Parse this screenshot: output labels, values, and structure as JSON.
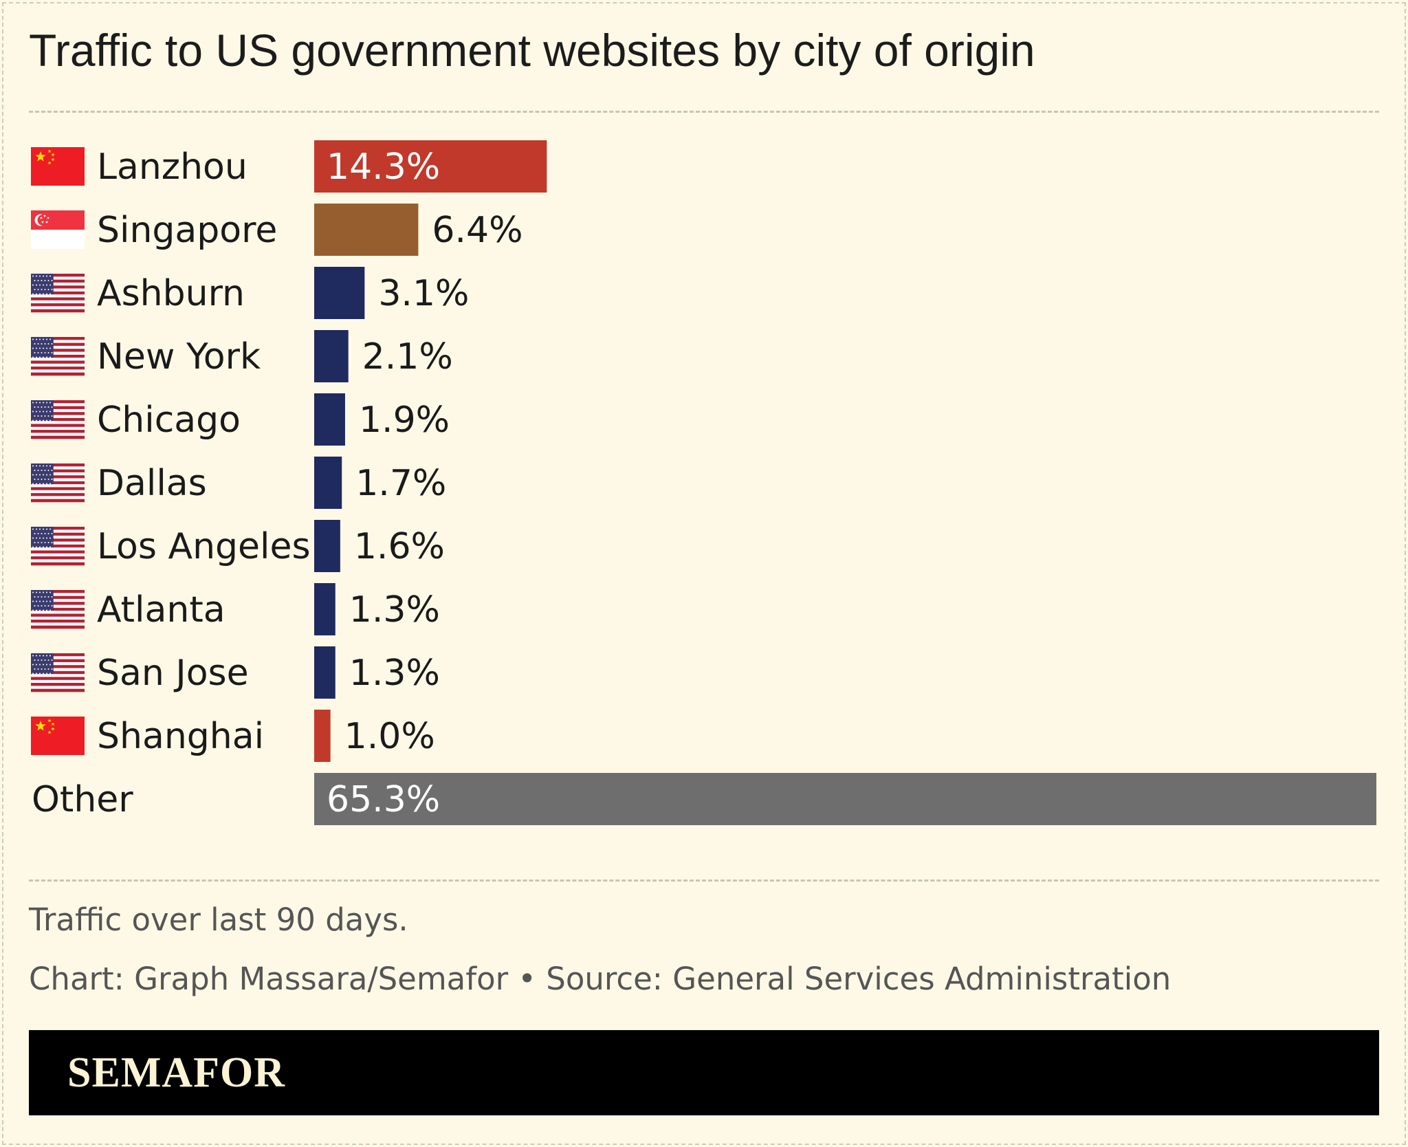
{
  "title": "Traffic to US government websites by city of origin",
  "note": "Traffic over last 90 days.",
  "credit": "Chart: Graph Massara/Semafor • Source: General Services Administration",
  "brand": "SEMAFOR",
  "colors": {
    "china": "#c0392b",
    "singapore": "#965e2e",
    "us": "#1f2a5e",
    "other": "#6f6e6e",
    "background": "#fdf9e6"
  },
  "chart_data": {
    "type": "bar",
    "orientation": "horizontal",
    "categories": [
      "Lanzhou",
      "Singapore",
      "Ashburn",
      "New York",
      "Chicago",
      "Dallas",
      "Los Angeles",
      "Atlanta",
      "San Jose",
      "Shanghai",
      "Other"
    ],
    "values": [
      14.3,
      6.4,
      3.1,
      2.1,
      1.9,
      1.7,
      1.6,
      1.3,
      1.3,
      1.0,
      65.3
    ],
    "value_labels": [
      "14.3%",
      "6.4%",
      "3.1%",
      "2.1%",
      "1.9%",
      "1.7%",
      "1.6%",
      "1.3%",
      "1.3%",
      "1.0%",
      "65.3%"
    ],
    "flags": [
      "china",
      "singapore",
      "us",
      "us",
      "us",
      "us",
      "us",
      "us",
      "us",
      "china",
      "none"
    ],
    "bar_colors": [
      "#c0392b",
      "#965e2e",
      "#1f2a5e",
      "#1f2a5e",
      "#1f2a5e",
      "#1f2a5e",
      "#1f2a5e",
      "#1f2a5e",
      "#1f2a5e",
      "#c0392b",
      "#6f6e6e"
    ],
    "xlim": [
      0,
      65.3
    ],
    "grid": false,
    "unit": "%"
  }
}
